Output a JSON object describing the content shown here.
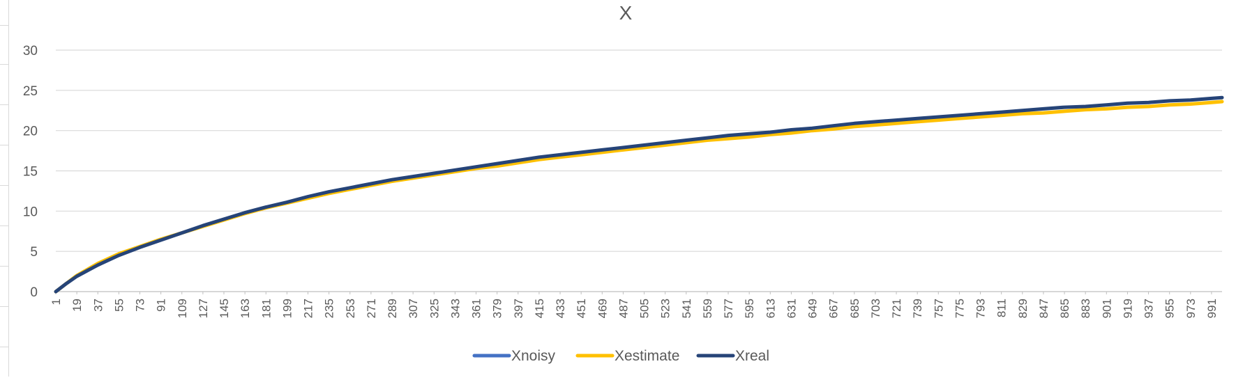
{
  "chart_data": {
    "type": "line",
    "title": "X",
    "xlabel": "",
    "ylabel": "",
    "ylim": [
      0,
      30
    ],
    "y_ticks": [
      0,
      5,
      10,
      15,
      20,
      25,
      30
    ],
    "x_range": [
      1,
      1000
    ],
    "x_tick_labels": [
      "1",
      "19",
      "37",
      "55",
      "73",
      "91",
      "109",
      "127",
      "145",
      "163",
      "181",
      "199",
      "217",
      "235",
      "253",
      "271",
      "289",
      "307",
      "325",
      "343",
      "361",
      "379",
      "397",
      "415",
      "433",
      "451",
      "469",
      "487",
      "505",
      "523",
      "541",
      "559",
      "577",
      "595",
      "613",
      "631",
      "649",
      "667",
      "685",
      "703",
      "721",
      "739",
      "757",
      "775",
      "793",
      "811",
      "829",
      "847",
      "865",
      "883",
      "901",
      "919",
      "937",
      "955",
      "973",
      "991"
    ],
    "grid": true,
    "legend_position": "bottom",
    "series": [
      {
        "name": "Xnoisy",
        "color": "#4472C4",
        "x": [
          1,
          10,
          19,
          37,
          55,
          73,
          91,
          109,
          127,
          145,
          163,
          181,
          199,
          217,
          235,
          253,
          271,
          289,
          307,
          325,
          343,
          361,
          379,
          397,
          415,
          433,
          451,
          469,
          487,
          505,
          523,
          541,
          559,
          577,
          595,
          613,
          631,
          649,
          667,
          685,
          703,
          721,
          739,
          757,
          775,
          793,
          811,
          829,
          847,
          865,
          883,
          901,
          919,
          937,
          955,
          973,
          991,
          1000
        ],
        "values": [
          0.0,
          1.0,
          1.9,
          3.3,
          4.5,
          5.5,
          6.4,
          7.3,
          8.2,
          9.0,
          9.8,
          10.5,
          11.1,
          11.8,
          12.4,
          12.9,
          13.4,
          13.9,
          14.3,
          14.7,
          15.1,
          15.5,
          15.9,
          16.3,
          16.7,
          17.0,
          17.3,
          17.6,
          17.9,
          18.2,
          18.5,
          18.8,
          19.1,
          19.4,
          19.6,
          19.8,
          20.1,
          20.3,
          20.6,
          20.9,
          21.1,
          21.3,
          21.5,
          21.7,
          21.9,
          22.1,
          22.3,
          22.5,
          22.7,
          22.9,
          23.0,
          23.2,
          23.4,
          23.5,
          23.7,
          23.8,
          24.0,
          24.1
        ]
      },
      {
        "name": "Xestimate",
        "color": "#FFC000",
        "x": [
          1,
          10,
          19,
          37,
          55,
          73,
          91,
          109,
          127,
          145,
          163,
          181,
          199,
          217,
          235,
          253,
          271,
          289,
          307,
          325,
          343,
          361,
          379,
          397,
          415,
          433,
          451,
          469,
          487,
          505,
          523,
          541,
          559,
          577,
          595,
          613,
          631,
          649,
          667,
          685,
          703,
          721,
          739,
          757,
          775,
          793,
          811,
          829,
          847,
          865,
          883,
          901,
          919,
          937,
          955,
          973,
          991,
          1000
        ],
        "values": [
          0.0,
          1.0,
          2.0,
          3.5,
          4.7,
          5.6,
          6.5,
          7.3,
          8.1,
          8.9,
          9.7,
          10.4,
          11.0,
          11.6,
          12.2,
          12.7,
          13.2,
          13.7,
          14.1,
          14.5,
          14.9,
          15.3,
          15.6,
          16.0,
          16.4,
          16.7,
          17.0,
          17.3,
          17.6,
          17.9,
          18.2,
          18.5,
          18.8,
          19.0,
          19.2,
          19.5,
          19.7,
          20.0,
          20.2,
          20.5,
          20.7,
          20.9,
          21.1,
          21.3,
          21.5,
          21.7,
          21.9,
          22.1,
          22.2,
          22.4,
          22.6,
          22.7,
          22.9,
          23.0,
          23.2,
          23.3,
          23.5,
          23.6
        ]
      },
      {
        "name": "Xreal",
        "color": "#264478",
        "x": [
          1,
          10,
          19,
          37,
          55,
          73,
          91,
          109,
          127,
          145,
          163,
          181,
          199,
          217,
          235,
          253,
          271,
          289,
          307,
          325,
          343,
          361,
          379,
          397,
          415,
          433,
          451,
          469,
          487,
          505,
          523,
          541,
          559,
          577,
          595,
          613,
          631,
          649,
          667,
          685,
          703,
          721,
          739,
          757,
          775,
          793,
          811,
          829,
          847,
          865,
          883,
          901,
          919,
          937,
          955,
          973,
          991,
          1000
        ],
        "values": [
          0.0,
          1.0,
          1.9,
          3.3,
          4.5,
          5.5,
          6.4,
          7.3,
          8.2,
          9.0,
          9.8,
          10.5,
          11.1,
          11.8,
          12.4,
          12.9,
          13.4,
          13.9,
          14.3,
          14.7,
          15.1,
          15.5,
          15.9,
          16.3,
          16.7,
          17.0,
          17.3,
          17.6,
          17.9,
          18.2,
          18.5,
          18.8,
          19.1,
          19.4,
          19.6,
          19.8,
          20.1,
          20.3,
          20.6,
          20.9,
          21.1,
          21.3,
          21.5,
          21.7,
          21.9,
          22.1,
          22.3,
          22.5,
          22.7,
          22.9,
          23.0,
          23.2,
          23.4,
          23.5,
          23.7,
          23.8,
          24.0,
          24.1
        ]
      }
    ]
  }
}
